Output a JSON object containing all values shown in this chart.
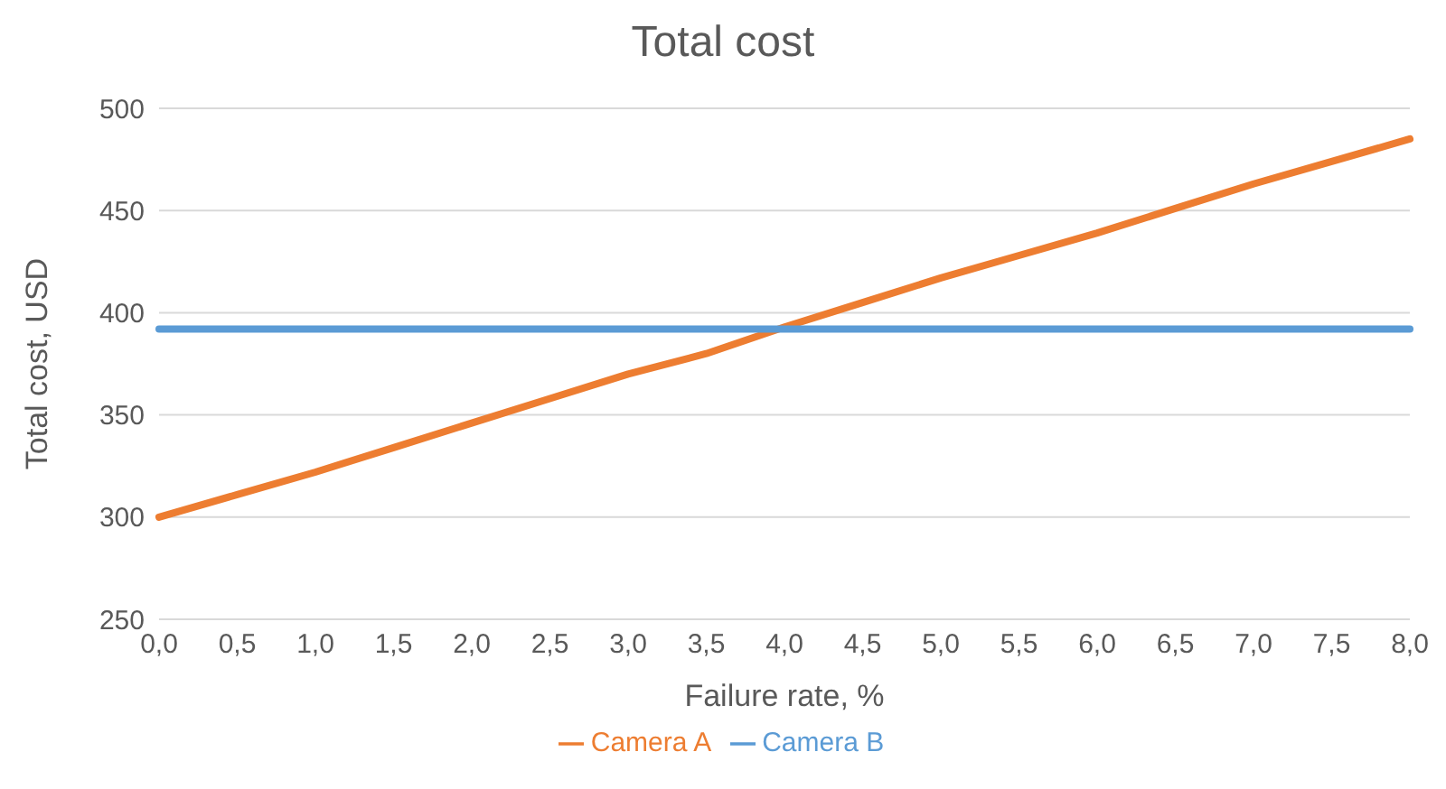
{
  "chart_data": {
    "type": "line",
    "title": "Total cost",
    "xlabel": "Failure rate, %",
    "ylabel": "Total cost, USD",
    "categories": [
      "0,0",
      "0,5",
      "1,0",
      "1,5",
      "2,0",
      "2,5",
      "3,0",
      "3,5",
      "4,0",
      "4,5",
      "5,0",
      "5,5",
      "6,0",
      "6,5",
      "7,0",
      "7,5",
      "8,0"
    ],
    "series": [
      {
        "name": "Camera A",
        "color": "#ed7d31",
        "values": [
          300,
          311,
          322,
          334,
          346,
          358,
          370,
          380,
          393,
          405,
          417,
          428,
          439,
          451,
          463,
          474,
          485
        ]
      },
      {
        "name": "Camera B",
        "color": "#5b9bd5",
        "values": [
          392,
          392,
          392,
          392,
          392,
          392,
          392,
          392,
          392,
          392,
          392,
          392,
          392,
          392,
          392,
          392,
          392
        ]
      }
    ],
    "ylim": [
      250,
      500
    ],
    "yticks": [
      250,
      300,
      350,
      400,
      450,
      500
    ],
    "grid": "y",
    "legend": "bottom",
    "marker": "none",
    "line_style": "solid"
  }
}
